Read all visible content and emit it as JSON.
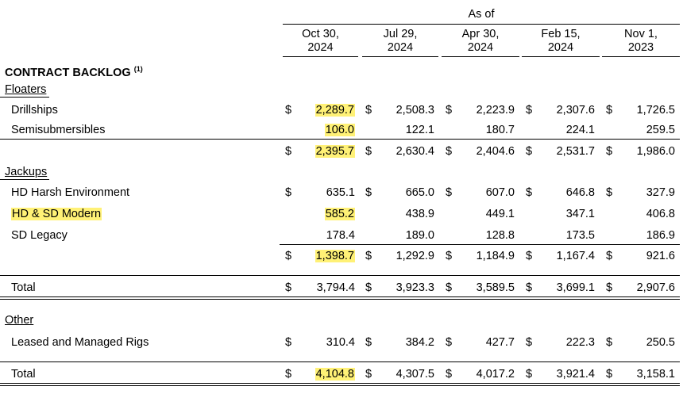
{
  "header": {
    "as_of": "As of",
    "columns": [
      {
        "line1": "Oct 30,",
        "line2": "2024"
      },
      {
        "line1": "Jul 29,",
        "line2": "2024"
      },
      {
        "line1": "Apr 30,",
        "line2": "2024"
      },
      {
        "line1": "Feb 15,",
        "line2": "2024"
      },
      {
        "line1": "Nov 1,",
        "line2": "2023"
      }
    ]
  },
  "section": {
    "title": "CONTRACT BACKLOG",
    "footnote": "(1)"
  },
  "floaters": {
    "label": "Floaters",
    "rows": [
      {
        "label": "Drillships",
        "values": [
          "2,289.7",
          "2,508.3",
          "2,223.9",
          "2,307.6",
          "1,726.5"
        ]
      },
      {
        "label": "Semisubmersibles",
        "values": [
          "106.0",
          "122.1",
          "180.7",
          "224.1",
          "259.5"
        ]
      }
    ],
    "subtotal": [
      "2,395.7",
      "2,630.4",
      "2,404.6",
      "2,531.7",
      "1,986.0"
    ]
  },
  "jackups": {
    "label": "Jackups",
    "rows": [
      {
        "label": "HD Harsh Environment",
        "values": [
          "635.1",
          "665.0",
          "607.0",
          "646.8",
          "327.9"
        ]
      },
      {
        "label": "HD & SD Modern",
        "values": [
          "585.2",
          "438.9",
          "449.1",
          "347.1",
          "406.8"
        ]
      },
      {
        "label": "SD Legacy",
        "values": [
          "178.4",
          "189.0",
          "128.8",
          "173.5",
          "186.9"
        ]
      }
    ],
    "subtotal": [
      "1,398.7",
      "1,292.9",
      "1,184.9",
      "1,167.4",
      "921.6"
    ]
  },
  "total1": {
    "label": "Total",
    "values": [
      "3,794.4",
      "3,923.3",
      "3,589.5",
      "3,699.1",
      "2,907.6"
    ]
  },
  "other": {
    "label": "Other",
    "rows": [
      {
        "label": "Leased and Managed Rigs",
        "values": [
          "310.4",
          "384.2",
          "427.7",
          "222.3",
          "250.5"
        ]
      }
    ]
  },
  "total2": {
    "label": "Total",
    "values": [
      "4,104.8",
      "4,307.5",
      "4,017.2",
      "3,921.4",
      "3,158.1"
    ]
  },
  "dollar": "$",
  "highlight_color": "#fff176"
}
